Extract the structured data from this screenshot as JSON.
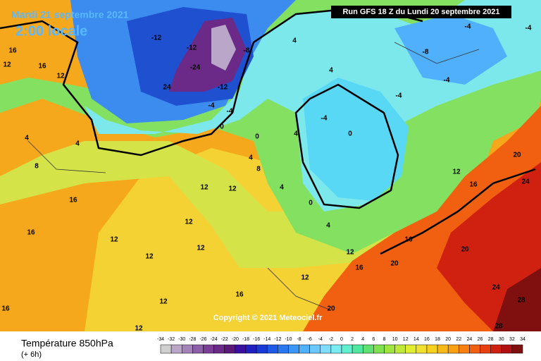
{
  "header": {
    "date": "Mardi 21 septembre 2021",
    "time": "2:00 locale",
    "run": "Run GFS 18 Z du Lundi 20 septembre 2021"
  },
  "copyright": "Copyright © 2021 Meteociel.fr",
  "legend": {
    "title": "Température 850hPa",
    "subtitle": "(+ 6h)",
    "ticks": [
      -34,
      -32,
      -30,
      -28,
      -26,
      -24,
      -22,
      -20,
      -18,
      -16,
      -14,
      -12,
      -10,
      -8,
      -6,
      -4,
      -2,
      0,
      2,
      4,
      6,
      8,
      10,
      12,
      14,
      16,
      18,
      20,
      22,
      24,
      26,
      28,
      30,
      32,
      34
    ],
    "colors": [
      "#cfcfcf",
      "#b9a6c9",
      "#a383b8",
      "#8c5fa6",
      "#7a3e96",
      "#6b2a87",
      "#5a1878",
      "#3a10a0",
      "#2020c0",
      "#1a3ad8",
      "#1e5ae6",
      "#2a78f0",
      "#3c96f8",
      "#50b0fc",
      "#68c8ff",
      "#80dcff",
      "#78ecf0",
      "#60f0d0",
      "#50e8a0",
      "#60e070",
      "#80e050",
      "#a0e440",
      "#c0e838",
      "#e0ec30",
      "#f0e030",
      "#f8d020",
      "#f8b818",
      "#f8a010",
      "#f88010",
      "#f06010",
      "#e84010",
      "#d02010",
      "#b01010",
      "#801010"
    ]
  },
  "map": {
    "labels": [
      "-12",
      "-12",
      "-24",
      "24",
      "-12",
      "-8",
      "-4",
      "-4",
      "0",
      "0",
      "4",
      "4",
      "4",
      "-4",
      "0",
      "-4",
      "-8",
      "-4",
      "-4",
      "-4",
      "4",
      "8",
      "4",
      "0",
      "4",
      "12",
      "12",
      "12",
      "12",
      "12",
      "12",
      "16",
      "16",
      "16",
      "12",
      "12",
      "16",
      "12",
      "16",
      "20",
      "16",
      "20",
      "24",
      "28",
      "28",
      "24",
      "20",
      "16",
      "12",
      "4",
      "8",
      "12",
      "16",
      "12",
      "16",
      "20",
      "4",
      "12"
    ]
  }
}
